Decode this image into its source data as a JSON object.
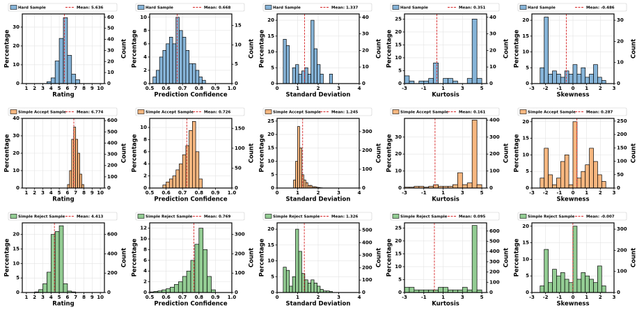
{
  "chart_data": [
    {
      "type": "histogram",
      "legend_label": "Hard Sample",
      "mean_label": "Mean: 5.636",
      "mean": 5.636,
      "color": "#86b4d8",
      "mean_color": "#d62728",
      "xlabel": "Rating",
      "ylabel": "Percentage",
      "y2label": "Count",
      "grid": true,
      "bins": [
        3.5,
        4,
        4.5,
        5,
        5.5,
        6,
        6.5,
        7,
        7.5
      ],
      "values": [
        1,
        3,
        12,
        24,
        35,
        15,
        5,
        2
      ],
      "xlim": [
        0.5,
        10.5
      ],
      "xticks": [
        1,
        2,
        3,
        4,
        5,
        6,
        7,
        8,
        9,
        10
      ],
      "ylim": [
        0,
        37
      ],
      "yticks": [
        0,
        10,
        20,
        30
      ],
      "y2lim": [
        0,
        63
      ],
      "y2ticks": [
        0,
        10,
        20,
        30,
        40,
        50,
        60
      ]
    },
    {
      "type": "histogram",
      "legend_label": "Hard Sample",
      "mean_label": "Mean: 0.668",
      "mean": 0.668,
      "color": "#86b4d8",
      "mean_color": "#d62728",
      "xlabel": "Prediction Confidence",
      "ylabel": "Percentage",
      "y2label": "Count",
      "grid": true,
      "bins": [
        0.52,
        0.54,
        0.56,
        0.58,
        0.6,
        0.62,
        0.64,
        0.66,
        0.68,
        0.7,
        0.72,
        0.74,
        0.76,
        0.78,
        0.8,
        0.82,
        0.84
      ],
      "values": [
        1,
        2,
        4,
        5,
        6,
        7,
        6,
        10,
        8,
        7,
        5,
        3,
        3,
        2,
        1,
        0.5
      ],
      "xlim": [
        0.5,
        1.0
      ],
      "xticks": [
        0.5,
        0.6,
        0.7,
        0.8,
        0.9,
        {
          "value": 1,
          "label": "1.0"
        }
      ],
      "ylim": [
        0,
        10.5
      ],
      "yticks": [
        0,
        2,
        4,
        6,
        8,
        10
      ],
      "y2lim": [
        0,
        18
      ],
      "y2ticks": [
        0,
        5,
        10,
        15
      ]
    },
    {
      "type": "histogram",
      "legend_label": "Hard Sample",
      "mean_label": "Mean: 1.337",
      "mean": 1.337,
      "color": "#86b4d8",
      "mean_color": "#d62728",
      "xlabel": "Standard Deviation",
      "ylabel": "Percentage",
      "y2label": "Count",
      "grid": true,
      "bins": [
        0.3,
        0.45,
        0.6,
        0.75,
        0.9,
        1.05,
        1.2,
        1.35,
        1.5,
        1.65,
        1.8,
        1.95,
        2.1,
        2.25,
        2.4,
        2.55,
        2.7
      ],
      "values": [
        14,
        12,
        0,
        5,
        6,
        3,
        4,
        5,
        3,
        20,
        11,
        6,
        3,
        0,
        0,
        3
      ],
      "xlim": [
        0,
        4
      ],
      "xticks": [
        0,
        1,
        2,
        3,
        4
      ],
      "ylim": [
        0,
        22
      ],
      "yticks": [
        0,
        5,
        10,
        15,
        20
      ],
      "y2lim": [
        0,
        42
      ],
      "y2ticks": [
        0,
        10,
        20,
        30,
        40
      ]
    },
    {
      "type": "histogram",
      "legend_label": "Hard Sample",
      "mean_label": "Mean: 0.351",
      "mean": 0.351,
      "color": "#86b4d8",
      "mean_color": "#d62728",
      "xlabel": "Kurtosis",
      "ylabel": "Percentage",
      "y2label": "Count",
      "grid": true,
      "bins": [
        -3,
        -2.5,
        -2,
        -1.5,
        -1,
        -0.5,
        0,
        0.5,
        1,
        1.5,
        2,
        2.5,
        3,
        3.5,
        4,
        4.5,
        5
      ],
      "values": [
        3,
        1,
        0,
        1,
        1,
        2,
        8,
        0,
        2,
        2,
        1,
        0,
        0,
        2,
        25,
        2
      ],
      "xlim": [
        -3,
        5.5
      ],
      "xticks": [
        -3,
        -1,
        1,
        3,
        5
      ],
      "ylim": [
        0,
        27
      ],
      "yticks": [
        0,
        5,
        10,
        15,
        20,
        25
      ],
      "y2lim": [
        0,
        42
      ],
      "y2ticks": [
        0,
        10,
        20,
        30,
        40
      ]
    },
    {
      "type": "histogram",
      "legend_label": "Hard Sample",
      "mean_label": "Mean: -0.486",
      "mean": -0.486,
      "color": "#86b4d8",
      "mean_color": "#d62728",
      "xlabel": "Skewness",
      "ylabel": "Percentage",
      "y2label": "Count",
      "grid": true,
      "bins": [
        -2.4,
        -2.1,
        -1.8,
        -1.5,
        -1.2,
        -0.9,
        -0.6,
        -0.3,
        0,
        0.3,
        0.6,
        0.9,
        1.2,
        1.5,
        1.8,
        2.1,
        2.4
      ],
      "values": [
        5,
        21,
        3,
        4,
        3,
        2,
        4,
        3,
        6,
        3,
        5,
        2,
        3,
        6,
        2,
        1
      ],
      "xlim": [
        -3,
        3
      ],
      "xticks": [
        -3,
        -2,
        -1,
        0,
        1,
        2,
        3
      ],
      "ylim": [
        0,
        22
      ],
      "yticks": [
        0,
        5,
        10,
        15,
        20
      ],
      "y2lim": [
        0,
        33
      ],
      "y2ticks": [
        0,
        10,
        20,
        30
      ]
    },
    {
      "type": "histogram",
      "legend_label": "Simple Accept Sample",
      "mean_label": "Mean: 6.774",
      "mean": 6.774,
      "color": "#f7b780",
      "mean_color": "#d62728",
      "xlabel": "Rating",
      "ylabel": "Percentage",
      "y2label": "Count",
      "grid": true,
      "bins": [
        6,
        6.25,
        6.5,
        6.75,
        7,
        7.25,
        7.5,
        7.75,
        8
      ],
      "values": [
        2,
        10,
        28,
        35,
        28,
        20,
        8,
        2
      ],
      "xlim": [
        0.5,
        10.5
      ],
      "xticks": [
        1,
        2,
        3,
        4,
        5,
        6,
        7,
        8,
        9,
        10
      ],
      "ylim": [
        0,
        40
      ],
      "yticks": [
        0,
        10,
        20,
        30,
        40
      ],
      "y2lim": [
        0,
        620
      ],
      "y2ticks": [
        0,
        100,
        200,
        300,
        400,
        500,
        600
      ]
    },
    {
      "type": "histogram",
      "legend_label": "Simple Accept Sample",
      "mean_label": "Mean: 0.726",
      "mean": 0.726,
      "color": "#f7b780",
      "mean_color": "#d62728",
      "xlabel": "Prediction Confidence",
      "ylabel": "Percentage",
      "y2label": "Count",
      "grid": true,
      "bins": [
        0.58,
        0.6,
        0.62,
        0.64,
        0.66,
        0.68,
        0.7,
        0.72,
        0.74,
        0.76,
        0.78,
        0.8,
        0.82
      ],
      "values": [
        0.5,
        1,
        1.5,
        2,
        3,
        4,
        5.5,
        7,
        9.5,
        11,
        6,
        1.5
      ],
      "xlim": [
        0.5,
        1.0
      ],
      "xticks": [
        0.5,
        0.6,
        0.7,
        0.8,
        0.9,
        {
          "value": 1,
          "label": "1.0"
        }
      ],
      "ylim": [
        0,
        11.5
      ],
      "yticks": [
        0,
        2,
        4,
        6,
        8,
        10
      ],
      "y2lim": [
        0,
        175
      ],
      "y2ticks": [
        0,
        50,
        100,
        150
      ]
    },
    {
      "type": "histogram",
      "legend_label": "Simple Accept Sample",
      "mean_label": "Mean: 1.245",
      "mean": 1.245,
      "color": "#f7b780",
      "mean_color": "#d62728",
      "xlabel": "Standard Deviation",
      "ylabel": "Percentage",
      "y2label": "Count",
      "grid": true,
      "bins": [
        0.8,
        0.9,
        1,
        1.1,
        1.2,
        1.3,
        1.4,
        1.5,
        1.6,
        1.7,
        1.8,
        1.9,
        2,
        2.1,
        2.2
      ],
      "values": [
        3,
        10,
        23,
        15,
        5,
        3,
        2,
        1,
        1,
        0.5,
        0.5,
        0.3,
        0.2,
        0.1
      ],
      "xlim": [
        0,
        4
      ],
      "xticks": [
        0,
        1,
        2,
        3,
        4
      ],
      "ylim": [
        0,
        26
      ],
      "yticks": [
        0,
        5,
        10,
        15,
        20,
        25
      ],
      "y2lim": [
        0,
        370
      ],
      "y2ticks": [
        0,
        100,
        200,
        300
      ]
    },
    {
      "type": "histogram",
      "legend_label": "Simple Accept Sample",
      "mean_label": "Mean: 0.161",
      "mean": 0.161,
      "color": "#f7b780",
      "mean_color": "#d62728",
      "xlabel": "Kurtosis",
      "ylabel": "Percentage",
      "y2label": "Count",
      "grid": true,
      "bins": [
        -3,
        -2.5,
        -2,
        -1.5,
        -1,
        -0.5,
        0,
        0.5,
        1,
        1.5,
        2,
        2.5,
        3,
        3.5,
        4,
        4.5,
        5
      ],
      "values": [
        0.5,
        0.5,
        1,
        1,
        0.5,
        1,
        2,
        1,
        1,
        1,
        2,
        9,
        2,
        3,
        40,
        2
      ],
      "xlim": [
        -3,
        5.5
      ],
      "xticks": [
        -3,
        -1,
        1,
        3,
        5
      ],
      "ylim": [
        0,
        41
      ],
      "yticks": [
        0,
        10,
        20,
        30
      ],
      "y2lim": [
        0,
        410
      ],
      "y2ticks": [
        0,
        100,
        200,
        300,
        400
      ]
    },
    {
      "type": "histogram",
      "legend_label": "Simple Accept Sample",
      "mean_label": "Mean: 0.287",
      "mean": 0.287,
      "color": "#f7b780",
      "mean_color": "#d62728",
      "xlabel": "Skewness",
      "ylabel": "Percentage",
      "y2label": "Count",
      "grid": true,
      "bins": [
        -2.4,
        -2.1,
        -1.8,
        -1.5,
        -1.2,
        -0.9,
        -0.6,
        -0.3,
        0,
        0.3,
        0.6,
        0.9,
        1.2,
        1.5,
        1.8,
        2.1,
        2.4
      ],
      "values": [
        3,
        12,
        4,
        1,
        3,
        8,
        10,
        1,
        20,
        3,
        5,
        7,
        12,
        8,
        4,
        2
      ],
      "xlim": [
        -3,
        3
      ],
      "xticks": [
        -3,
        -2,
        -1,
        0,
        1,
        2,
        3
      ],
      "ylim": [
        0,
        21
      ],
      "yticks": [
        0,
        5,
        10,
        15,
        20
      ],
      "y2lim": [
        0,
        260
      ],
      "y2ticks": [
        0,
        50,
        100,
        150,
        200,
        250
      ]
    },
    {
      "type": "histogram",
      "legend_label": "Simple Reject Sample",
      "mean_label": "Mean: 4.413",
      "mean": 4.413,
      "color": "#93cc93",
      "mean_color": "#d62728",
      "xlabel": "Rating",
      "ylabel": "Percentage",
      "y2label": "Count",
      "grid": true,
      "bins": [
        2,
        2.5,
        3,
        3.5,
        4,
        4.5,
        5,
        5.5,
        6,
        6.5,
        7
      ],
      "values": [
        0.2,
        1,
        3,
        7,
        20,
        21,
        23,
        3,
        0.5,
        0.2
      ],
      "xlim": [
        0.5,
        10.5
      ],
      "xticks": [
        1,
        2,
        3,
        4,
        5,
        6,
        7,
        8,
        9,
        10
      ],
      "ylim": [
        0,
        24
      ],
      "yticks": [
        0,
        5,
        10,
        15,
        20
      ],
      "y2lim": [
        0,
        720
      ],
      "y2ticks": [
        0,
        200,
        400,
        600
      ]
    },
    {
      "type": "histogram",
      "legend_label": "Simple Reject Sample",
      "mean_label": "Mean: 0.769",
      "mean": 0.769,
      "color": "#93cc93",
      "mean_color": "#d62728",
      "xlabel": "Prediction Confidence",
      "ylabel": "Percentage",
      "y2label": "Count",
      "grid": true,
      "bins": [
        0.5,
        0.525,
        0.55,
        0.575,
        0.6,
        0.625,
        0.65,
        0.675,
        0.7,
        0.725,
        0.75,
        0.775,
        0.8,
        0.825,
        0.85,
        0.875,
        0.9
      ],
      "values": [
        0.1,
        0.2,
        0.3,
        0.5,
        0.7,
        1,
        1.5,
        2,
        3,
        4,
        6,
        9,
        12,
        8,
        3,
        0.5
      ],
      "xlim": [
        0.5,
        1.0
      ],
      "xticks": [
        0.5,
        0.6,
        0.7,
        0.8,
        0.9,
        {
          "value": 1,
          "label": "1.0"
        }
      ],
      "ylim": [
        0,
        13
      ],
      "yticks": [
        0,
        2,
        4,
        6,
        8,
        10,
        12
      ],
      "y2lim": [
        0,
        360
      ],
      "y2ticks": [
        0,
        100,
        200,
        300
      ]
    },
    {
      "type": "histogram",
      "legend_label": "Simple Reject Sample",
      "mean_label": "Mean: 1.326",
      "mean": 1.326,
      "color": "#93cc93",
      "mean_color": "#d62728",
      "xlabel": "Standard Deviation",
      "ylabel": "Percentage",
      "y2label": "Count",
      "grid": true,
      "bins": [
        0.3,
        0.45,
        0.6,
        0.75,
        0.9,
        1.05,
        1.2,
        1.35,
        1.5,
        1.65,
        1.8,
        1.95,
        2.1,
        2.25,
        2.4,
        2.55,
        2.7
      ],
      "values": [
        8,
        7,
        2,
        5,
        20,
        13,
        6,
        4,
        3,
        4,
        3,
        2,
        1,
        0.5,
        0.5,
        0.3
      ],
      "xlim": [
        0,
        4
      ],
      "xticks": [
        0,
        1,
        2,
        3,
        4
      ],
      "ylim": [
        0,
        22
      ],
      "yticks": [
        0,
        5,
        10,
        15,
        20
      ],
      "y2lim": [
        0,
        560
      ],
      "y2ticks": [
        0,
        100,
        200,
        300,
        400,
        500
      ]
    },
    {
      "type": "histogram",
      "legend_label": "Simple Reject Sample",
      "mean_label": "Mean: 0.095",
      "mean": 0.095,
      "color": "#93cc93",
      "mean_color": "#d62728",
      "xlabel": "Kurtosis",
      "ylabel": "Percentage",
      "y2label": "Count",
      "grid": true,
      "bins": [
        -3,
        -2.5,
        -2,
        -1.5,
        -1,
        -0.5,
        0,
        0.5,
        1,
        1.5,
        2,
        2.5,
        3,
        3.5,
        4,
        4.5,
        5
      ],
      "values": [
        2,
        2,
        1,
        1,
        1,
        1,
        1,
        2,
        2,
        1,
        1,
        1,
        2,
        1,
        26,
        1
      ],
      "xlim": [
        -3,
        5.5
      ],
      "xticks": [
        -3,
        -1,
        1,
        3,
        5
      ],
      "ylim": [
        0,
        27
      ],
      "yticks": [
        0,
        5,
        10,
        15,
        20,
        25
      ],
      "y2lim": [
        0,
        680
      ],
      "y2ticks": [
        0,
        100,
        200,
        300,
        400,
        500,
        600
      ]
    },
    {
      "type": "histogram",
      "legend_label": "Simple Reject Sample",
      "mean_label": "Mean: -0.007",
      "mean": -0.007,
      "color": "#93cc93",
      "mean_color": "#d62728",
      "xlabel": "Skewness",
      "ylabel": "Percentage",
      "y2label": "Count",
      "grid": true,
      "bins": [
        -2.4,
        -2.1,
        -1.8,
        -1.5,
        -1.2,
        -0.9,
        -0.6,
        -0.3,
        0,
        0.3,
        0.6,
        0.9,
        1.2,
        1.5,
        1.8,
        2.1,
        2.4
      ],
      "values": [
        2,
        13,
        3,
        7,
        5,
        6,
        4,
        3,
        20,
        4,
        6,
        5,
        4,
        3,
        8,
        2
      ],
      "xlim": [
        -3,
        3
      ],
      "xticks": [
        -3,
        -2,
        -1,
        0,
        1,
        2,
        3
      ],
      "ylim": [
        0,
        21
      ],
      "yticks": [
        0,
        5,
        10,
        15,
        20
      ],
      "y2lim": [
        0,
        330
      ],
      "y2ticks": [
        0,
        100,
        200,
        300
      ]
    }
  ]
}
